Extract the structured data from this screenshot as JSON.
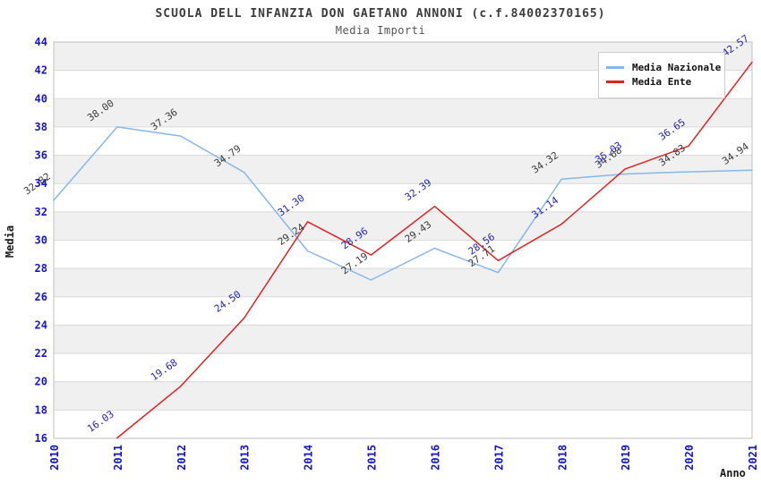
{
  "page": {
    "window_title": "Media Importi chart"
  },
  "colors": {
    "nazionale_line": "#85b7e8",
    "ente_line": "#dd2222",
    "axis_tick_label": "#1414cc",
    "nazionale_point_label": "#3a3a3a",
    "ente_point_label": "#2525b5",
    "band": "#f0f0f0",
    "grid": "#d9d9d9",
    "plot_border": "#bfbfbf"
  },
  "chart_data": {
    "type": "line",
    "title": "SCUOLA DELL INFANZIA DON GAETANO ANNONI (c.f.84002370165)",
    "subtitle": "Media Importi",
    "xlabel": "Anno",
    "ylabel": "Media",
    "x": [
      "2010",
      "2011",
      "2012",
      "2013",
      "2014",
      "2015",
      "2016",
      "2017",
      "2018",
      "2019",
      "2020",
      "2021"
    ],
    "series": [
      {
        "name": "Media Nazionale",
        "color": "#85b7e8",
        "label_color": "#3a3a3a",
        "values": [
          32.82,
          38.0,
          37.36,
          34.79,
          29.24,
          27.19,
          29.43,
          27.71,
          34.32,
          34.68,
          34.83,
          34.94
        ]
      },
      {
        "name": "Media Ente",
        "color": "#dd2222",
        "label_color": "#2525b5",
        "values": [
          null,
          16.03,
          19.68,
          24.5,
          31.3,
          28.96,
          32.39,
          28.56,
          31.14,
          35.03,
          36.65,
          42.57
        ]
      }
    ],
    "ylim": [
      16,
      44
    ],
    "ytick_step": 2,
    "grid": true,
    "banded_background": true,
    "legend_position": "top-right",
    "label_decimals": 2
  }
}
